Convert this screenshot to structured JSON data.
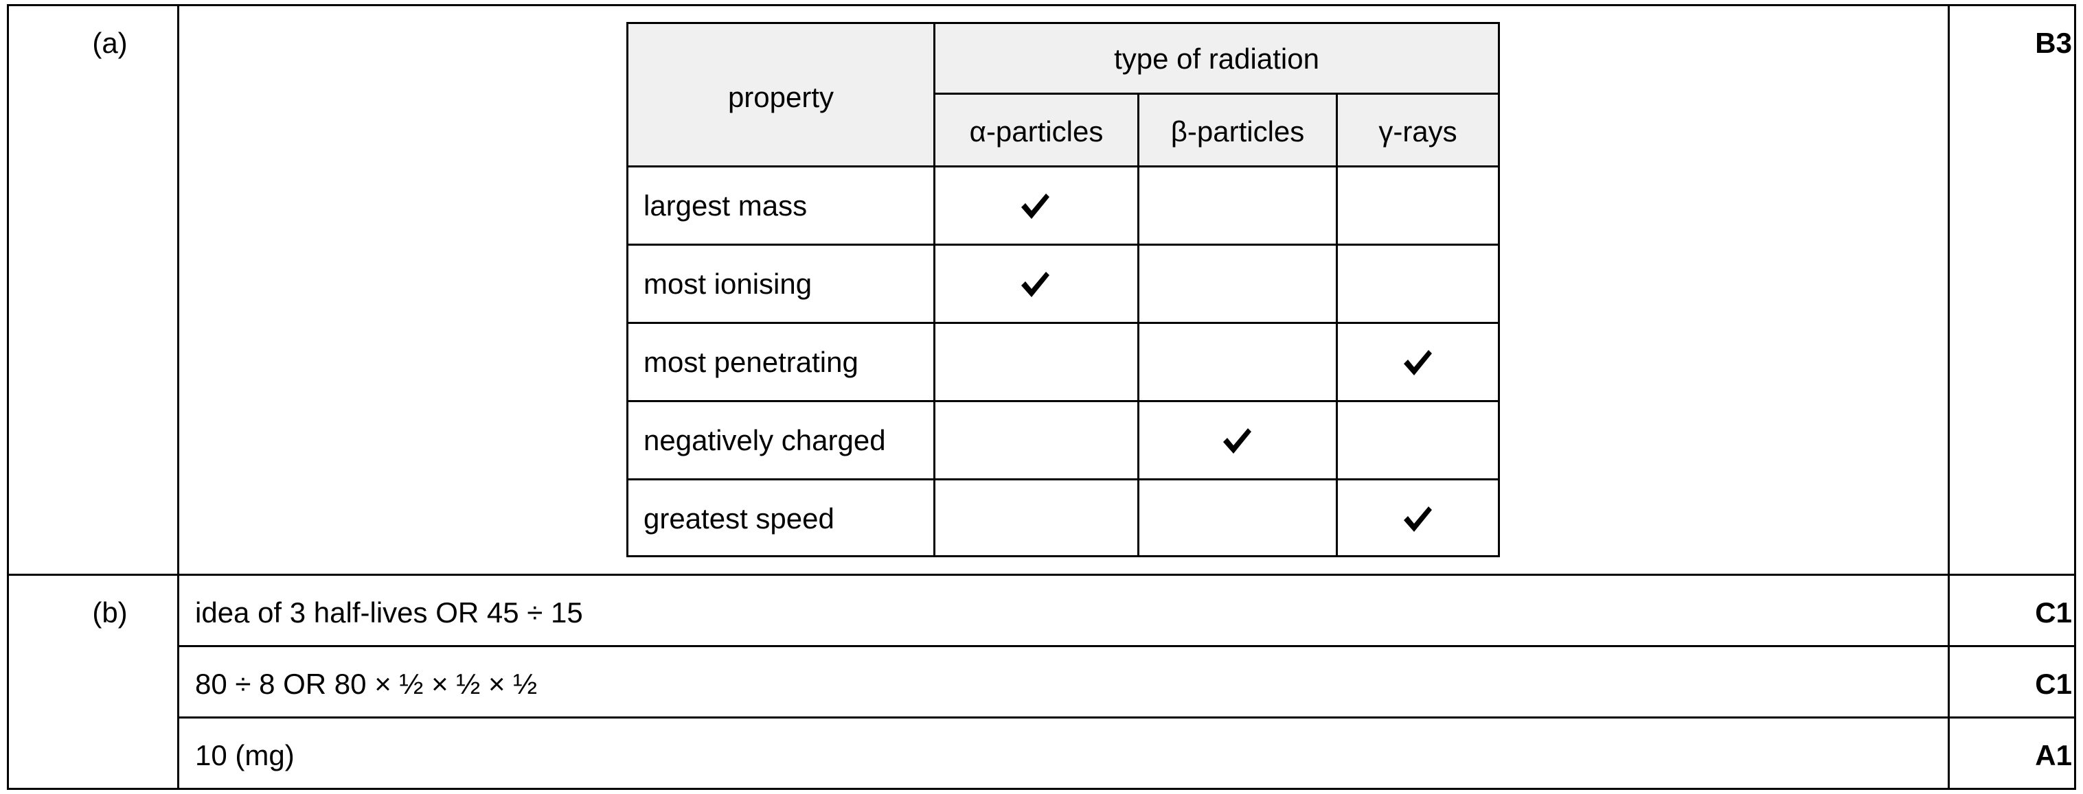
{
  "parts": [
    {
      "label": "(a)",
      "mark": "B3"
    },
    {
      "label": "(b)",
      "marks": [
        "C1",
        "C1",
        "A1"
      ]
    }
  ],
  "table": {
    "property_header": "property",
    "type_header": "type of radiation",
    "columns": [
      "α-particles",
      "β-particles",
      "γ-rays"
    ],
    "rows": [
      {
        "property": "largest mass",
        "ticks": [
          true,
          false,
          false
        ]
      },
      {
        "property": "most ionising",
        "ticks": [
          true,
          false,
          false
        ]
      },
      {
        "property": "most penetrating",
        "ticks": [
          false,
          false,
          true
        ]
      },
      {
        "property": "negatively charged",
        "ticks": [
          false,
          true,
          false
        ]
      },
      {
        "property": "greatest speed",
        "ticks": [
          false,
          false,
          true
        ]
      }
    ],
    "tick_icon": "check-mark-icon"
  },
  "part_b_lines": [
    "idea of 3 half-lives OR 45 ÷ 15",
    "80 ÷ 8 OR 80 × ½ × ½ × ½",
    "10 (mg)"
  ]
}
